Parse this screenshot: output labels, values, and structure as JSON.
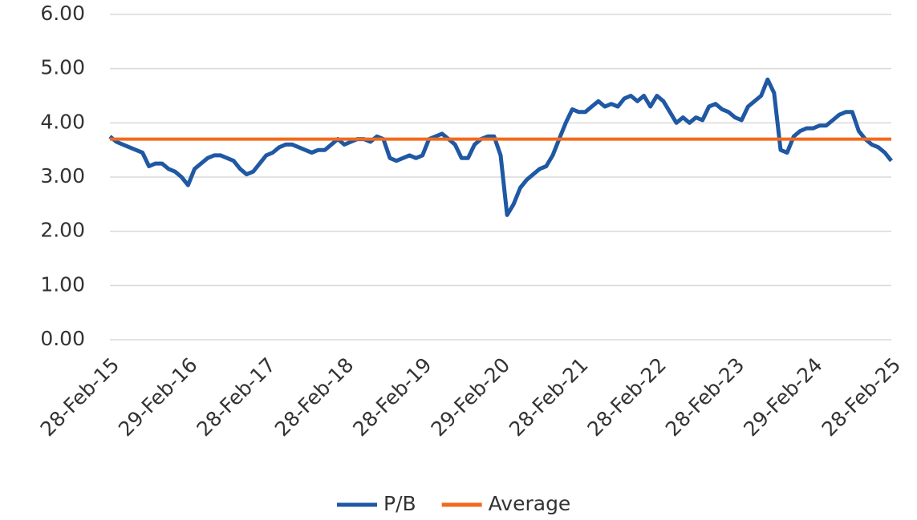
{
  "chart_data": {
    "type": "line",
    "x": [
      "2015-02",
      "2015-03",
      "2015-04",
      "2015-05",
      "2015-06",
      "2015-07",
      "2015-08",
      "2015-09",
      "2015-10",
      "2015-11",
      "2015-12",
      "2016-01",
      "2016-02",
      "2016-03",
      "2016-04",
      "2016-05",
      "2016-06",
      "2016-07",
      "2016-08",
      "2016-09",
      "2016-10",
      "2016-11",
      "2016-12",
      "2017-01",
      "2017-02",
      "2017-03",
      "2017-04",
      "2017-05",
      "2017-06",
      "2017-07",
      "2017-08",
      "2017-09",
      "2017-10",
      "2017-11",
      "2017-12",
      "2018-01",
      "2018-02",
      "2018-03",
      "2018-04",
      "2018-05",
      "2018-06",
      "2018-07",
      "2018-08",
      "2018-09",
      "2018-10",
      "2018-11",
      "2018-12",
      "2019-01",
      "2019-02",
      "2019-03",
      "2019-04",
      "2019-05",
      "2019-06",
      "2019-07",
      "2019-08",
      "2019-09",
      "2019-10",
      "2019-11",
      "2019-12",
      "2020-01",
      "2020-02",
      "2020-03",
      "2020-04",
      "2020-05",
      "2020-06",
      "2020-07",
      "2020-08",
      "2020-09",
      "2020-10",
      "2020-11",
      "2020-12",
      "2021-01",
      "2021-02",
      "2021-03",
      "2021-04",
      "2021-05",
      "2021-06",
      "2021-07",
      "2021-08",
      "2021-09",
      "2021-10",
      "2021-11",
      "2021-12",
      "2022-01",
      "2022-02",
      "2022-03",
      "2022-04",
      "2022-05",
      "2022-06",
      "2022-07",
      "2022-08",
      "2022-09",
      "2022-10",
      "2022-11",
      "2022-12",
      "2023-01",
      "2023-02",
      "2023-03",
      "2023-04",
      "2023-05",
      "2023-06",
      "2023-07",
      "2023-08",
      "2023-09",
      "2023-10",
      "2023-11",
      "2023-12",
      "2024-01",
      "2024-02",
      "2024-03",
      "2024-04",
      "2024-05",
      "2024-06",
      "2024-07",
      "2024-08",
      "2024-09",
      "2024-10",
      "2024-11",
      "2024-12",
      "2025-01",
      "2025-02"
    ],
    "series": [
      {
        "name": "P/B",
        "color": "#1f58a3",
        "values": [
          3.75,
          3.65,
          3.6,
          3.55,
          3.5,
          3.45,
          3.2,
          3.25,
          3.25,
          3.15,
          3.1,
          3.0,
          2.85,
          3.15,
          3.25,
          3.35,
          3.4,
          3.4,
          3.35,
          3.3,
          3.15,
          3.05,
          3.1,
          3.25,
          3.4,
          3.45,
          3.55,
          3.6,
          3.6,
          3.55,
          3.5,
          3.45,
          3.5,
          3.5,
          3.6,
          3.7,
          3.6,
          3.65,
          3.7,
          3.7,
          3.65,
          3.75,
          3.7,
          3.35,
          3.3,
          3.35,
          3.4,
          3.35,
          3.4,
          3.7,
          3.75,
          3.8,
          3.7,
          3.6,
          3.35,
          3.35,
          3.6,
          3.7,
          3.75,
          3.75,
          3.4,
          2.3,
          2.5,
          2.8,
          2.95,
          3.05,
          3.15,
          3.2,
          3.4,
          3.7,
          4.0,
          4.25,
          4.2,
          4.2,
          4.3,
          4.4,
          4.3,
          4.35,
          4.3,
          4.45,
          4.5,
          4.4,
          4.5,
          4.3,
          4.5,
          4.4,
          4.2,
          4.0,
          4.1,
          4.0,
          4.1,
          4.05,
          4.3,
          4.35,
          4.25,
          4.2,
          4.1,
          4.05,
          4.3,
          4.4,
          4.5,
          4.8,
          4.55,
          3.5,
          3.45,
          3.75,
          3.85,
          3.9,
          3.9,
          3.95,
          3.95,
          4.05,
          4.15,
          4.2,
          4.2,
          3.85,
          3.7,
          3.6,
          3.55,
          3.45,
          3.3
        ]
      },
      {
        "name": "Average",
        "color": "#f26a1b",
        "values": [
          3.7,
          3.7,
          3.7,
          3.7,
          3.7,
          3.7,
          3.7,
          3.7,
          3.7,
          3.7,
          3.7,
          3.7,
          3.7,
          3.7,
          3.7,
          3.7,
          3.7,
          3.7,
          3.7,
          3.7,
          3.7,
          3.7,
          3.7,
          3.7,
          3.7,
          3.7,
          3.7,
          3.7,
          3.7,
          3.7,
          3.7,
          3.7,
          3.7,
          3.7,
          3.7,
          3.7,
          3.7,
          3.7,
          3.7,
          3.7,
          3.7,
          3.7,
          3.7,
          3.7,
          3.7,
          3.7,
          3.7,
          3.7,
          3.7,
          3.7,
          3.7,
          3.7,
          3.7,
          3.7,
          3.7,
          3.7,
          3.7,
          3.7,
          3.7,
          3.7,
          3.7,
          3.7,
          3.7,
          3.7,
          3.7,
          3.7,
          3.7,
          3.7,
          3.7,
          3.7,
          3.7,
          3.7,
          3.7,
          3.7,
          3.7,
          3.7,
          3.7,
          3.7,
          3.7,
          3.7,
          3.7,
          3.7,
          3.7,
          3.7,
          3.7,
          3.7,
          3.7,
          3.7,
          3.7,
          3.7,
          3.7,
          3.7,
          3.7,
          3.7,
          3.7,
          3.7,
          3.7,
          3.7,
          3.7,
          3.7,
          3.7,
          3.7,
          3.7,
          3.7,
          3.7,
          3.7,
          3.7,
          3.7,
          3.7,
          3.7,
          3.7,
          3.7,
          3.7,
          3.7,
          3.7,
          3.7,
          3.7,
          3.7,
          3.7,
          3.7,
          3.7
        ]
      }
    ],
    "xlim": [
      "2015-02",
      "2025-02"
    ],
    "xticks": [
      {
        "value": "2015-02",
        "label": "28-Feb-15"
      },
      {
        "value": "2016-02",
        "label": "29-Feb-16"
      },
      {
        "value": "2017-02",
        "label": "28-Feb-17"
      },
      {
        "value": "2018-02",
        "label": "28-Feb-18"
      },
      {
        "value": "2019-02",
        "label": "28-Feb-19"
      },
      {
        "value": "2020-02",
        "label": "29-Feb-20"
      },
      {
        "value": "2021-02",
        "label": "28-Feb-21"
      },
      {
        "value": "2022-02",
        "label": "28-Feb-22"
      },
      {
        "value": "2023-02",
        "label": "28-Feb-23"
      },
      {
        "value": "2024-02",
        "label": "29-Feb-24"
      },
      {
        "value": "2025-02",
        "label": "28-Feb-25"
      }
    ],
    "ylim": [
      0,
      6
    ],
    "yticks": [
      {
        "value": 0,
        "label": "0.00"
      },
      {
        "value": 1,
        "label": "1.00"
      },
      {
        "value": 2,
        "label": "2.00"
      },
      {
        "value": 3,
        "label": "3.00"
      },
      {
        "value": 4,
        "label": "4.00"
      },
      {
        "value": 5,
        "label": "5.00"
      },
      {
        "value": 6,
        "label": "6.00"
      }
    ],
    "grid": true,
    "legend": "bottom"
  }
}
